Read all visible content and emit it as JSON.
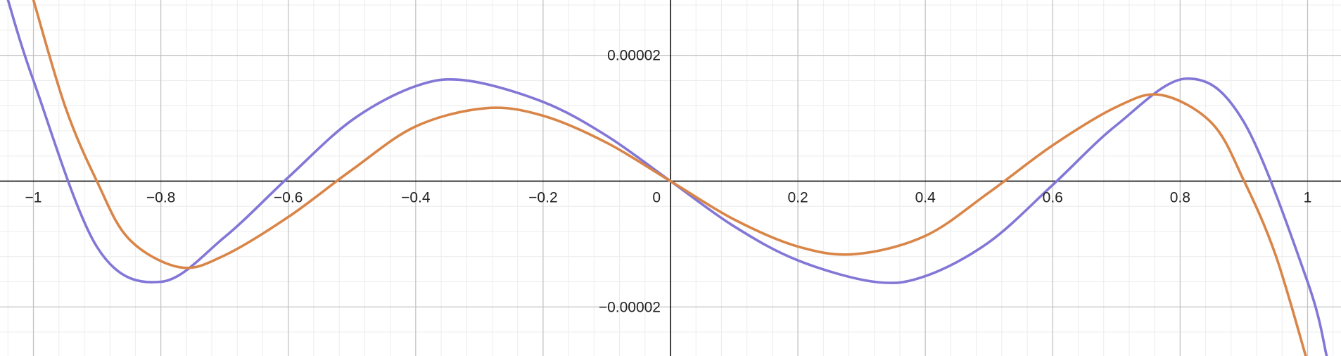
{
  "chart_data": {
    "type": "line",
    "title": "",
    "xlabel": "",
    "ylabel": "",
    "xlim": [
      -1.0525,
      1.0525
    ],
    "ylim": [
      -2.78e-05,
      2.88e-05
    ],
    "grid": true,
    "x_ticks": [
      {
        "value": -1,
        "label": "−1"
      },
      {
        "value": -0.8,
        "label": "−0.8"
      },
      {
        "value": -0.6,
        "label": "−0.6"
      },
      {
        "value": -0.4,
        "label": "−0.4"
      },
      {
        "value": -0.2,
        "label": "−0.2"
      },
      {
        "value": 0,
        "label": "0"
      },
      {
        "value": 0.2,
        "label": "0.2"
      },
      {
        "value": 0.4,
        "label": "0.4"
      },
      {
        "value": 0.6,
        "label": "0.6"
      },
      {
        "value": 0.8,
        "label": "0.8"
      },
      {
        "value": 1,
        "label": "1"
      }
    ],
    "y_ticks": [
      {
        "value": 2e-05,
        "label": "0.00002"
      },
      {
        "value": -2e-05,
        "label": "−0.00002"
      }
    ],
    "series": [
      {
        "color": "#8277d6",
        "x": [
          -1.04,
          -1.0,
          -0.9,
          -0.8,
          -0.7,
          -0.6,
          -0.5,
          -0.4,
          -0.32,
          -0.2,
          -0.1,
          0,
          0.1,
          0.2,
          0.32,
          0.4,
          0.5,
          0.6,
          0.7,
          0.81,
          0.9,
          1.0,
          1.03
        ],
        "y": [
          2.88e-05,
          1.6e-05,
          -1.05e-05,
          -1.6e-05,
          -8.9e-06,
          6e-07,
          9.7e-06,
          1.51e-05,
          1.6e-05,
          1.26e-05,
          7.2e-06,
          0,
          -7.2e-06,
          -1.26e-05,
          -1.6e-05,
          -1.51e-05,
          -9.7e-06,
          -6e-07,
          8.9e-06,
          1.63e-05,
          9.4e-06,
          -1.6e-05,
          -2.78e-05
        ]
      },
      {
        "color": "#d98548",
        "x": [
          -1.0,
          -0.95,
          -0.9,
          -0.85,
          -0.77,
          -0.7,
          -0.6,
          -0.5,
          -0.4,
          -0.29,
          -0.2,
          -0.1,
          0,
          0.1,
          0.2,
          0.29,
          0.4,
          0.5,
          0.6,
          0.7,
          0.77,
          0.85,
          0.9,
          0.95,
          1.0
        ],
        "y": [
          2.88e-05,
          1.18e-05,
          -1e-07,
          -9.2e-06,
          -1.37e-05,
          -1.18e-05,
          -5.7e-06,
          1.8e-06,
          8.7e-06,
          1.16e-05,
          1.04e-05,
          6.1e-06,
          0,
          -6.1e-06,
          -1.04e-05,
          -1.16e-05,
          -8.7e-06,
          -1.8e-06,
          5.7e-06,
          1.18e-05,
          1.37e-05,
          9.2e-06,
          1e-07,
          -1.18e-05,
          -2.88e-05
        ]
      }
    ]
  }
}
